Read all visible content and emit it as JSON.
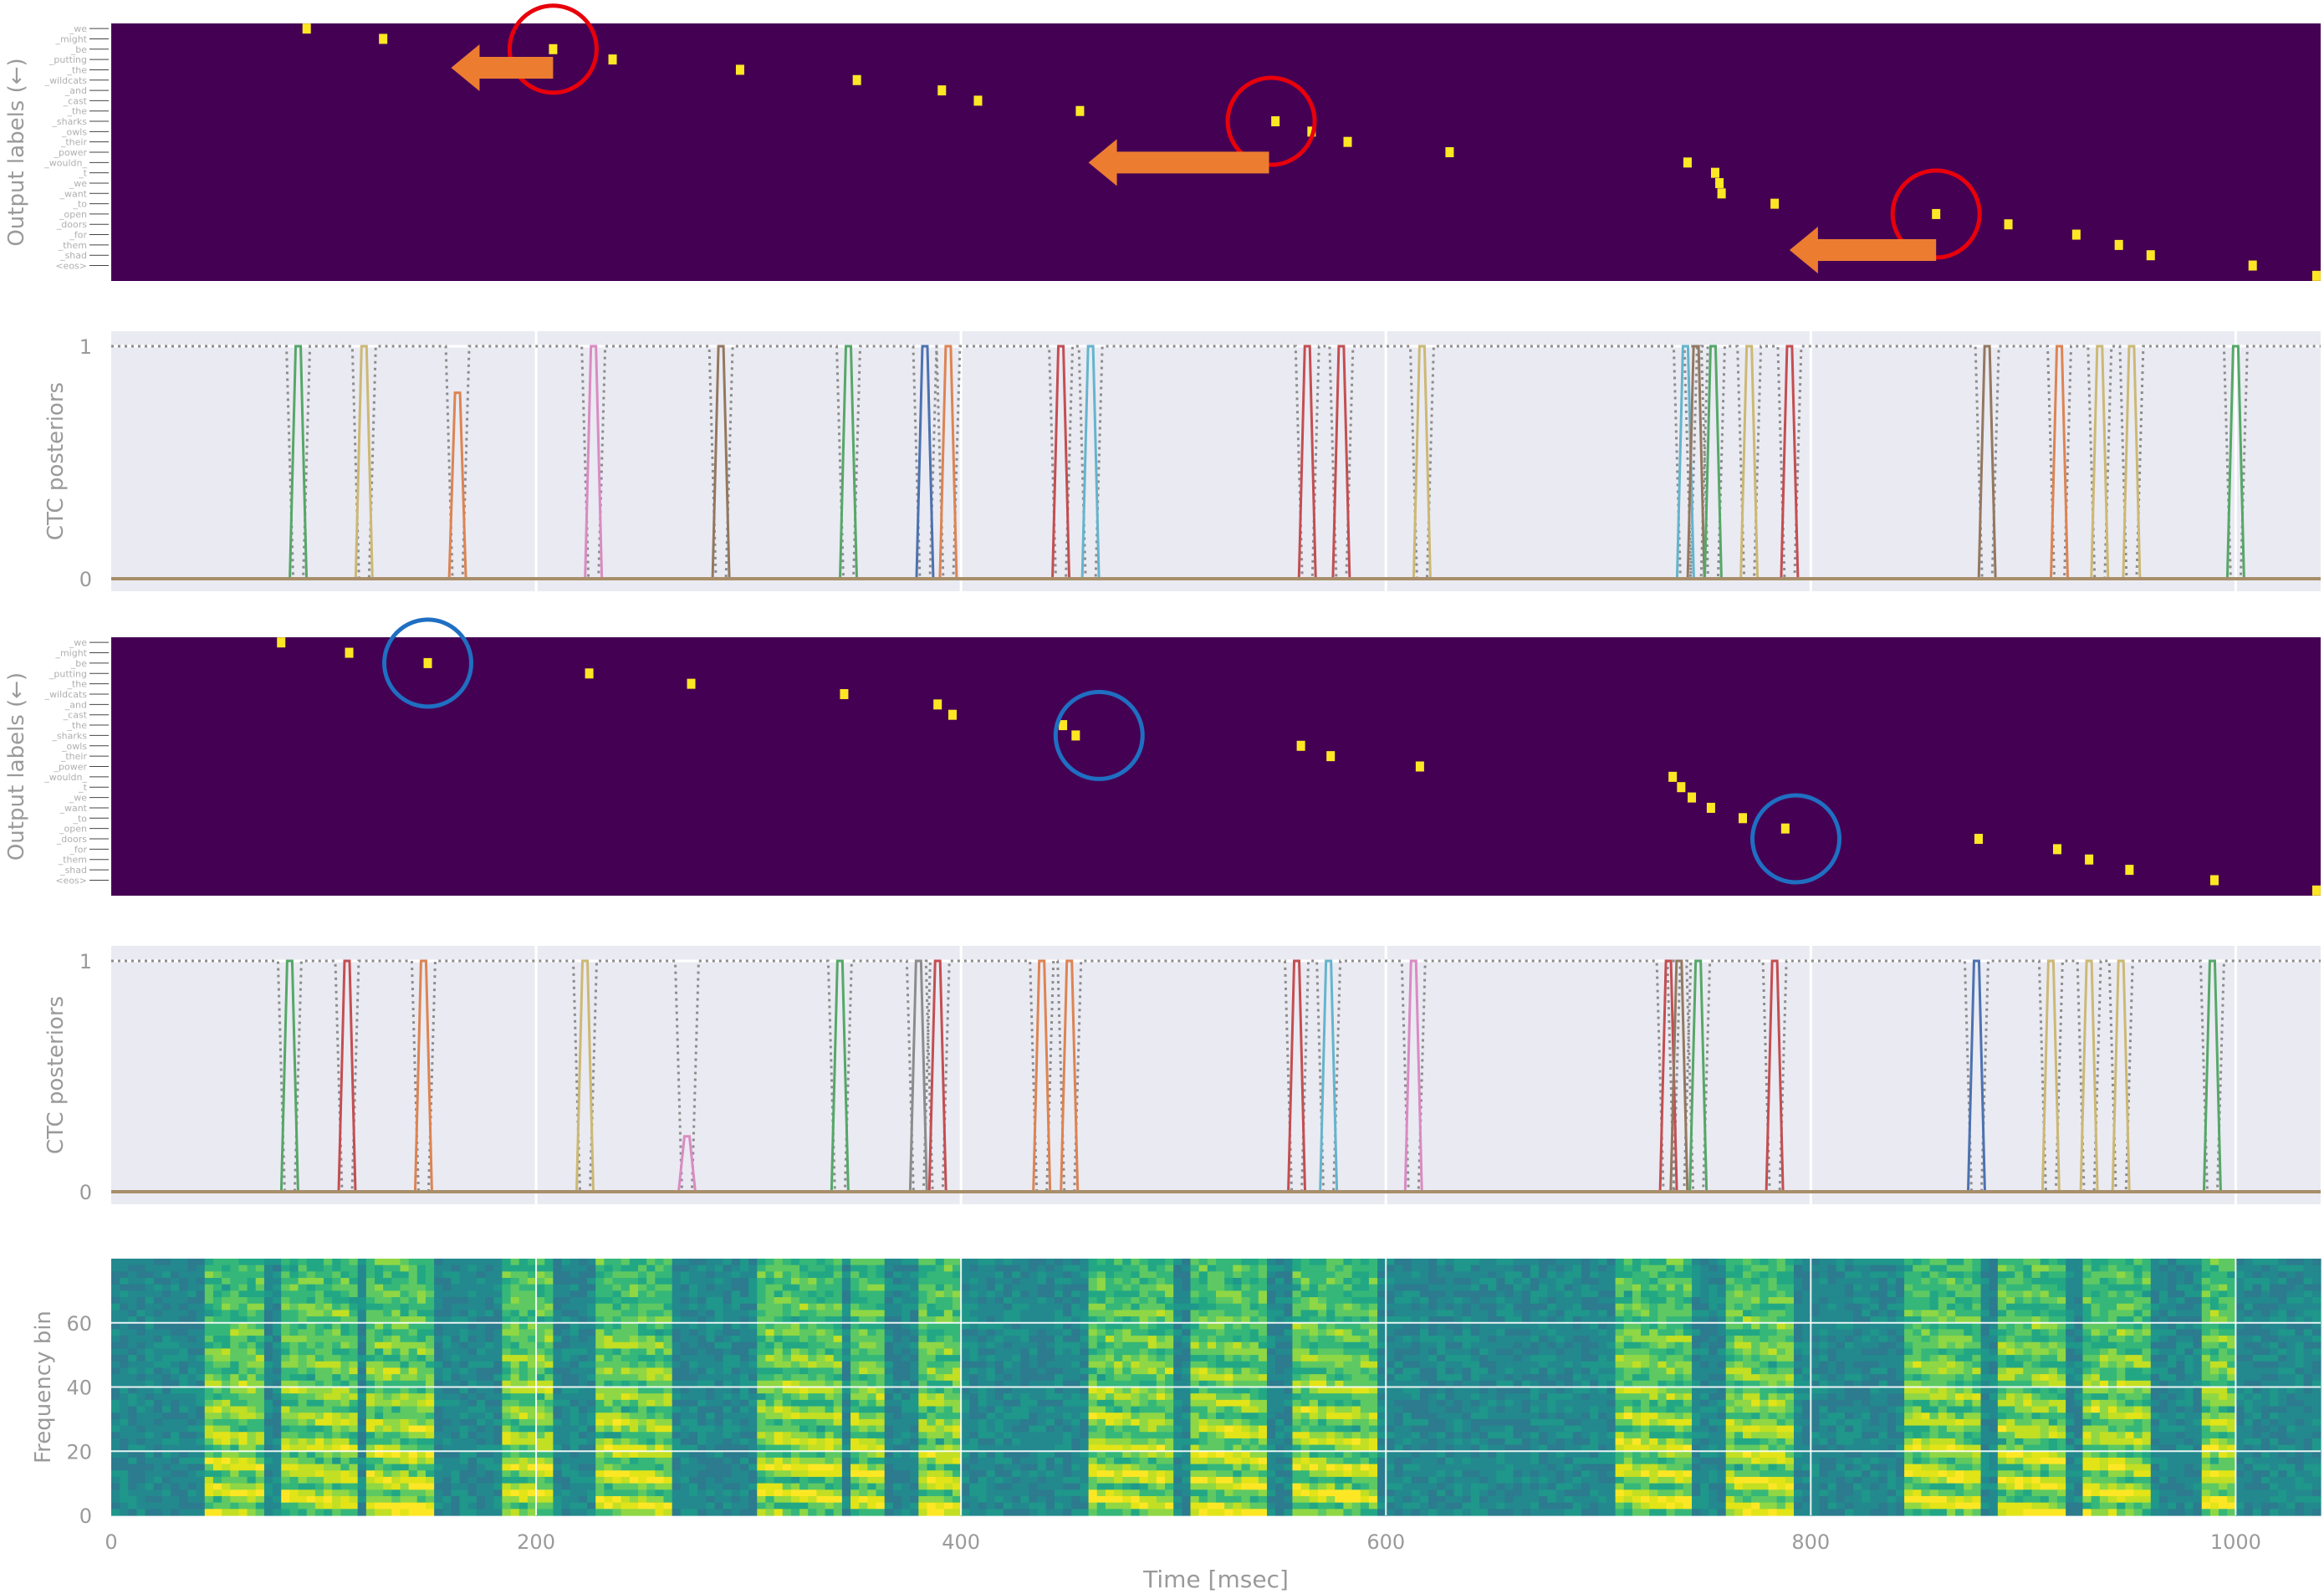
{
  "chart_data": [
    {
      "panel": "alignment-top",
      "type": "heatmap",
      "ylabel": "Output labels (←)",
      "colormap": {
        "background": "#440154",
        "active": "#fde725"
      },
      "tokens": [
        "_we",
        "_might",
        "_be",
        "_putting",
        "_the",
        "_wildcats",
        "_and",
        "_cast",
        "_the",
        "_sharks",
        "_owls",
        "_their",
        "_power",
        "_wouldn_",
        "_t",
        "_we",
        "_want",
        "_to",
        "_open",
        "_doors",
        "_for",
        "_them",
        "_shad",
        "<eos>"
      ],
      "points": [
        [
          92,
          0
        ],
        [
          128,
          1
        ],
        [
          208,
          2
        ],
        [
          236,
          3
        ],
        [
          296,
          4
        ],
        [
          351,
          5
        ],
        [
          391,
          6
        ],
        [
          408,
          7
        ],
        [
          456,
          8
        ],
        [
          548,
          9
        ],
        [
          565,
          10
        ],
        [
          582,
          11
        ],
        [
          630,
          12
        ],
        [
          742,
          13
        ],
        [
          755,
          14
        ],
        [
          757,
          15
        ],
        [
          758,
          16
        ],
        [
          783,
          17
        ],
        [
          859,
          18
        ],
        [
          893,
          19
        ],
        [
          925,
          20
        ],
        [
          945,
          21
        ],
        [
          960,
          22
        ],
        [
          1008,
          23
        ],
        [
          1038,
          24
        ]
      ],
      "annotation_color": "#e8000b",
      "circles_at": [
        [
          208,
          2
        ],
        [
          546,
          9
        ],
        [
          859,
          18
        ]
      ],
      "arrow_color": "#ec7c30",
      "arrows": [
        [
          208,
          160,
          3.8
        ],
        [
          545,
          460,
          13
        ],
        [
          859,
          790,
          21.5
        ]
      ]
    },
    {
      "panel": "ctc-top",
      "type": "line",
      "ylabel": "CTC posteriors",
      "ytick_labels": [
        "0",
        "1"
      ],
      "ylim": [
        0,
        1
      ],
      "xlim": [
        0,
        1040
      ],
      "blank_color": "#8c8c8c",
      "spikes": [
        {
          "t": 88,
          "color": "#55a868",
          "h": 1
        },
        {
          "t": 119,
          "color": "#ccb974",
          "h": 1
        },
        {
          "t": 163,
          "color": "#dd8452",
          "h": 0.8
        },
        {
          "t": 227,
          "color": "#da8bc3",
          "h": 1
        },
        {
          "t": 287,
          "color": "#937860",
          "h": 1
        },
        {
          "t": 347,
          "color": "#55a868",
          "h": 1
        },
        {
          "t": 383,
          "color": "#4c72b0",
          "h": 1
        },
        {
          "t": 394,
          "color": "#dd8452",
          "h": 1
        },
        {
          "t": 447,
          "color": "#c44e52",
          "h": 1
        },
        {
          "t": 461,
          "color": "#64b5cd",
          "h": 1
        },
        {
          "t": 563,
          "color": "#c44e52",
          "h": 1
        },
        {
          "t": 579,
          "color": "#c44e52",
          "h": 1
        },
        {
          "t": 617,
          "color": "#ccb974",
          "h": 1
        },
        {
          "t": 741,
          "color": "#64b5cd",
          "h": 1
        },
        {
          "t": 746,
          "color": "#937860",
          "h": 1
        },
        {
          "t": 754,
          "color": "#55a868",
          "h": 1
        },
        {
          "t": 771,
          "color": "#ccb974",
          "h": 1
        },
        {
          "t": 790,
          "color": "#c44e52",
          "h": 1
        },
        {
          "t": 883,
          "color": "#937860",
          "h": 1
        },
        {
          "t": 917,
          "color": "#dd8452",
          "h": 1
        },
        {
          "t": 936,
          "color": "#ccb974",
          "h": 1
        },
        {
          "t": 951,
          "color": "#ccb974",
          "h": 1
        },
        {
          "t": 1000,
          "color": "#55a868",
          "h": 1
        }
      ]
    },
    {
      "panel": "alignment-bottom",
      "type": "heatmap",
      "ylabel": "Output labels (←)",
      "colormap": {
        "background": "#440154",
        "active": "#fde725"
      },
      "tokens": [
        "_we",
        "_might",
        "_be",
        "_putting",
        "_the",
        "_wildcats",
        "_and",
        "_cast",
        "_the",
        "_sharks",
        "_owls",
        "_their",
        "_power",
        "_wouldn_",
        "_t",
        "_we",
        "_want",
        "_to",
        "_open",
        "_doors",
        "_for",
        "_them",
        "_shad",
        "<eos>"
      ],
      "points": [
        [
          80,
          0
        ],
        [
          112,
          1
        ],
        [
          149,
          2
        ],
        [
          225,
          3
        ],
        [
          273,
          4
        ],
        [
          345,
          5
        ],
        [
          389,
          6
        ],
        [
          396,
          7
        ],
        [
          448,
          8
        ],
        [
          454,
          9
        ],
        [
          560,
          10
        ],
        [
          574,
          11
        ],
        [
          616,
          12
        ],
        [
          735,
          13
        ],
        [
          739,
          14
        ],
        [
          744,
          15
        ],
        [
          753,
          16
        ],
        [
          768,
          17
        ],
        [
          788,
          18
        ],
        [
          879,
          19
        ],
        [
          916,
          20
        ],
        [
          931,
          21
        ],
        [
          950,
          22
        ],
        [
          990,
          23
        ],
        [
          1038,
          24
        ]
      ],
      "annotation_color": "#1f6fc2",
      "circles_at": [
        [
          149,
          2
        ],
        [
          465,
          9
        ],
        [
          793,
          19
        ]
      ]
    },
    {
      "panel": "ctc-bottom",
      "type": "line",
      "ylabel": "CTC posteriors",
      "ytick_labels": [
        "0",
        "1"
      ],
      "ylim": [
        0,
        1
      ],
      "xlim": [
        0,
        1040
      ],
      "blank_color": "#8c8c8c",
      "spikes": [
        {
          "t": 84,
          "color": "#55a868",
          "h": 1
        },
        {
          "t": 111,
          "color": "#c44e52",
          "h": 1
        },
        {
          "t": 147,
          "color": "#dd8452",
          "h": 1
        },
        {
          "t": 223,
          "color": "#ccb974",
          "h": 1
        },
        {
          "t": 271,
          "color": "#da8bc3",
          "h": 0.24
        },
        {
          "t": 343,
          "color": "#55a868",
          "h": 1
        },
        {
          "t": 380,
          "color": "#8c8c8c",
          "h": 1
        },
        {
          "t": 389,
          "color": "#c44e52",
          "h": 1
        },
        {
          "t": 438,
          "color": "#dd8452",
          "h": 1
        },
        {
          "t": 451,
          "color": "#dd8452",
          "h": 1
        },
        {
          "t": 558,
          "color": "#c44e52",
          "h": 1
        },
        {
          "t": 573,
          "color": "#64b5cd",
          "h": 1
        },
        {
          "t": 613,
          "color": "#da8bc3",
          "h": 1
        },
        {
          "t": 733,
          "color": "#c44e52",
          "h": 1
        },
        {
          "t": 738,
          "color": "#937860",
          "h": 1
        },
        {
          "t": 747,
          "color": "#55a868",
          "h": 1
        },
        {
          "t": 783,
          "color": "#c44e52",
          "h": 1
        },
        {
          "t": 878,
          "color": "#4c72b0",
          "h": 1
        },
        {
          "t": 913,
          "color": "#ccb974",
          "h": 1
        },
        {
          "t": 931,
          "color": "#ccb974",
          "h": 1
        },
        {
          "t": 946,
          "color": "#ccb974",
          "h": 1
        },
        {
          "t": 989,
          "color": "#55a868",
          "h": 1
        }
      ]
    },
    {
      "panel": "spectrogram",
      "type": "heatmap",
      "xlabel": "Time [msec]",
      "ylabel": "Frequency bin",
      "x_ticks": [
        0,
        200,
        400,
        600,
        800,
        1000
      ],
      "y_ticks": [
        0,
        20,
        40,
        60
      ],
      "xlim": [
        0,
        1040
      ],
      "ylim": [
        0,
        80
      ],
      "speech_segments": [
        [
          44,
          70
        ],
        [
          82,
          115
        ],
        [
          120,
          150
        ],
        [
          183,
          208
        ],
        [
          228,
          262
        ],
        [
          305,
          330
        ],
        [
          333,
          345
        ],
        [
          350,
          365
        ],
        [
          380,
          400
        ],
        [
          460,
          500
        ],
        [
          510,
          545
        ],
        [
          555,
          595
        ],
        [
          710,
          745
        ],
        [
          760,
          790
        ],
        [
          845,
          880
        ],
        [
          890,
          920
        ],
        [
          930,
          960
        ],
        [
          985,
          1000
        ]
      ]
    }
  ]
}
